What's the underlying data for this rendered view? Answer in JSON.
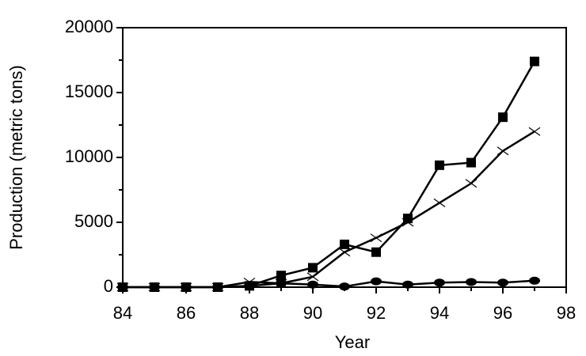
{
  "chart_data": {
    "type": "line",
    "x_label": "Year",
    "y_label": "Production (metric tons)",
    "x": [
      84,
      85,
      86,
      87,
      88,
      89,
      90,
      91,
      92,
      93,
      94,
      95,
      96,
      97
    ],
    "series": [
      {
        "marker": "square",
        "color": "#000000",
        "values": [
          0,
          0,
          0,
          0,
          100,
          900,
          1500,
          3300,
          2700,
          5300,
          9400,
          9600,
          13100,
          17400
        ]
      },
      {
        "marker": "cross",
        "color": "#000000",
        "values": [
          0,
          0,
          0,
          0,
          400,
          300,
          800,
          2700,
          3800,
          5000,
          6500,
          8000,
          10500,
          12000
        ]
      },
      {
        "marker": "circle",
        "color": "#000000",
        "values": [
          0,
          0,
          0,
          0,
          100,
          300,
          200,
          50,
          450,
          200,
          350,
          400,
          350,
          500
        ]
      }
    ],
    "xlim": [
      84,
      98
    ],
    "xticks": [
      84,
      86,
      88,
      90,
      92,
      94,
      96,
      98
    ],
    "x_minor_ticks": [
      85,
      87,
      89,
      91,
      93,
      95,
      97
    ],
    "ylim": [
      0,
      20000
    ],
    "yticks": [
      0,
      5000,
      10000,
      15000,
      20000
    ],
    "y_minor_ticks": [
      2500,
      7500,
      12500,
      17500
    ],
    "grid": false
  }
}
